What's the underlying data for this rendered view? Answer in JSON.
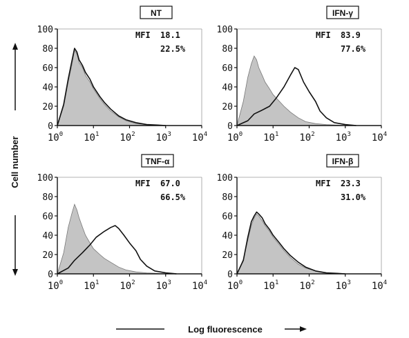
{
  "axes": {
    "y_label": "Cell number",
    "x_label": "Log fluorescence"
  },
  "chart_data": [
    {
      "type": "area",
      "title": "NT",
      "stat_label": "MFI",
      "mfi": "18.1",
      "percent": "22.5%",
      "xscale": "log",
      "xlim": [
        1,
        10000
      ],
      "ylim": [
        0,
        100
      ],
      "yticks": [
        "0",
        "20",
        "40",
        "60",
        "80",
        "100"
      ],
      "xticks": [
        {
          "base": "10",
          "exp": "0"
        },
        {
          "base": "10",
          "exp": "1"
        },
        {
          "base": "10",
          "exp": "2"
        },
        {
          "base": "10",
          "exp": "3"
        },
        {
          "base": "10",
          "exp": "4"
        }
      ],
      "series": [
        {
          "role": "control",
          "style": "filled-gray",
          "x": [
            1,
            1.5,
            2,
            2.5,
            3,
            3.5,
            4,
            5,
            6,
            8,
            10,
            15,
            20,
            30,
            50,
            80,
            150,
            300,
            600,
            1000
          ],
          "y": [
            0,
            20,
            45,
            62,
            78,
            74,
            65,
            60,
            52,
            45,
            38,
            28,
            22,
            15,
            9,
            5,
            2,
            1,
            0.5,
            0
          ]
        },
        {
          "role": "treated",
          "style": "black-line",
          "x": [
            1,
            1.5,
            2,
            2.5,
            3,
            3.5,
            4,
            5,
            6,
            8,
            10,
            15,
            20,
            30,
            50,
            80,
            150,
            300,
            600,
            1000
          ],
          "y": [
            0,
            22,
            48,
            66,
            80,
            76,
            68,
            62,
            55,
            48,
            40,
            30,
            24,
            17,
            10,
            6,
            3,
            1,
            0.5,
            0
          ]
        }
      ]
    },
    {
      "type": "area",
      "title": "IFN-γ",
      "stat_label": "MFI",
      "mfi": "83.9",
      "percent": "77.6%",
      "xscale": "log",
      "xlim": [
        1,
        10000
      ],
      "ylim": [
        0,
        100
      ],
      "yticks": [
        "0",
        "20",
        "40",
        "60",
        "80",
        "100"
      ],
      "xticks": [
        {
          "base": "10",
          "exp": "0"
        },
        {
          "base": "10",
          "exp": "1"
        },
        {
          "base": "10",
          "exp": "2"
        },
        {
          "base": "10",
          "exp": "3"
        },
        {
          "base": "10",
          "exp": "4"
        }
      ],
      "series": [
        {
          "role": "control",
          "style": "filled-gray",
          "x": [
            1,
            1.5,
            2,
            2.5,
            3,
            3.5,
            4,
            5,
            6,
            8,
            10,
            15,
            20,
            30,
            50,
            80,
            150,
            300,
            600,
            1000
          ],
          "y": [
            0,
            25,
            50,
            64,
            72,
            68,
            60,
            52,
            45,
            38,
            32,
            25,
            20,
            14,
            8,
            4,
            2,
            1,
            0.5,
            0
          ]
        },
        {
          "role": "treated",
          "style": "black-line",
          "x": [
            1,
            2,
            3,
            5,
            8,
            12,
            20,
            30,
            40,
            50,
            70,
            100,
            150,
            200,
            300,
            500,
            1000,
            2000
          ],
          "y": [
            0,
            5,
            12,
            16,
            20,
            28,
            40,
            52,
            60,
            58,
            45,
            35,
            25,
            15,
            8,
            3,
            1,
            0
          ]
        }
      ]
    },
    {
      "type": "area",
      "title": "TNF-α",
      "stat_label": "MFI",
      "mfi": "67.0",
      "percent": "66.5%",
      "xscale": "log",
      "xlim": [
        1,
        10000
      ],
      "ylim": [
        0,
        100
      ],
      "yticks": [
        "0",
        "20",
        "40",
        "60",
        "80",
        "100"
      ],
      "xticks": [
        {
          "base": "10",
          "exp": "0"
        },
        {
          "base": "10",
          "exp": "1"
        },
        {
          "base": "10",
          "exp": "2"
        },
        {
          "base": "10",
          "exp": "3"
        },
        {
          "base": "10",
          "exp": "4"
        }
      ],
      "series": [
        {
          "role": "control",
          "style": "filled-gray",
          "x": [
            1,
            1.5,
            2,
            2.5,
            3,
            3.5,
            4,
            5,
            6,
            8,
            10,
            15,
            20,
            30,
            50,
            80,
            150,
            300,
            600,
            1000
          ],
          "y": [
            0,
            22,
            48,
            62,
            72,
            66,
            58,
            48,
            40,
            32,
            26,
            20,
            16,
            12,
            7,
            4,
            2,
            1,
            0.5,
            0
          ]
        },
        {
          "role": "treated",
          "style": "black-line",
          "x": [
            1,
            2,
            3,
            5,
            8,
            12,
            20,
            30,
            40,
            50,
            70,
            100,
            150,
            200,
            300,
            500,
            1000,
            2000
          ],
          "y": [
            0,
            6,
            14,
            22,
            30,
            38,
            44,
            48,
            50,
            47,
            40,
            32,
            24,
            15,
            8,
            3,
            1,
            0
          ]
        }
      ]
    },
    {
      "type": "area",
      "title": "IFN-β",
      "stat_label": "MFI",
      "mfi": "23.3",
      "percent": "31.0%",
      "xscale": "log",
      "xlim": [
        1,
        10000
      ],
      "ylim": [
        0,
        100
      ],
      "yticks": [
        "0",
        "20",
        "40",
        "60",
        "80",
        "100"
      ],
      "xticks": [
        {
          "base": "10",
          "exp": "0"
        },
        {
          "base": "10",
          "exp": "1"
        },
        {
          "base": "10",
          "exp": "2"
        },
        {
          "base": "10",
          "exp": "3"
        },
        {
          "base": "10",
          "exp": "4"
        }
      ],
      "series": [
        {
          "role": "control",
          "style": "filled-gray",
          "x": [
            1,
            1.5,
            2,
            2.5,
            3,
            3.5,
            4,
            5,
            6,
            8,
            10,
            15,
            20,
            30,
            50,
            80,
            150,
            300,
            600,
            1000
          ],
          "y": [
            0,
            15,
            35,
            50,
            58,
            62,
            60,
            55,
            50,
            44,
            38,
            30,
            24,
            17,
            10,
            6,
            3,
            1,
            0.5,
            0
          ]
        },
        {
          "role": "treated",
          "style": "black-line",
          "x": [
            1,
            1.5,
            2,
            2.5,
            3,
            3.5,
            4,
            5,
            6,
            8,
            10,
            15,
            20,
            30,
            50,
            80,
            150,
            300,
            600,
            1000
          ],
          "y": [
            0,
            14,
            38,
            54,
            60,
            64,
            62,
            58,
            52,
            46,
            40,
            32,
            26,
            19,
            12,
            7,
            3,
            1,
            0.5,
            0
          ]
        }
      ]
    }
  ],
  "colors": {
    "fill": "#c4c4c4",
    "line": "#111111",
    "axis": "#111111"
  }
}
